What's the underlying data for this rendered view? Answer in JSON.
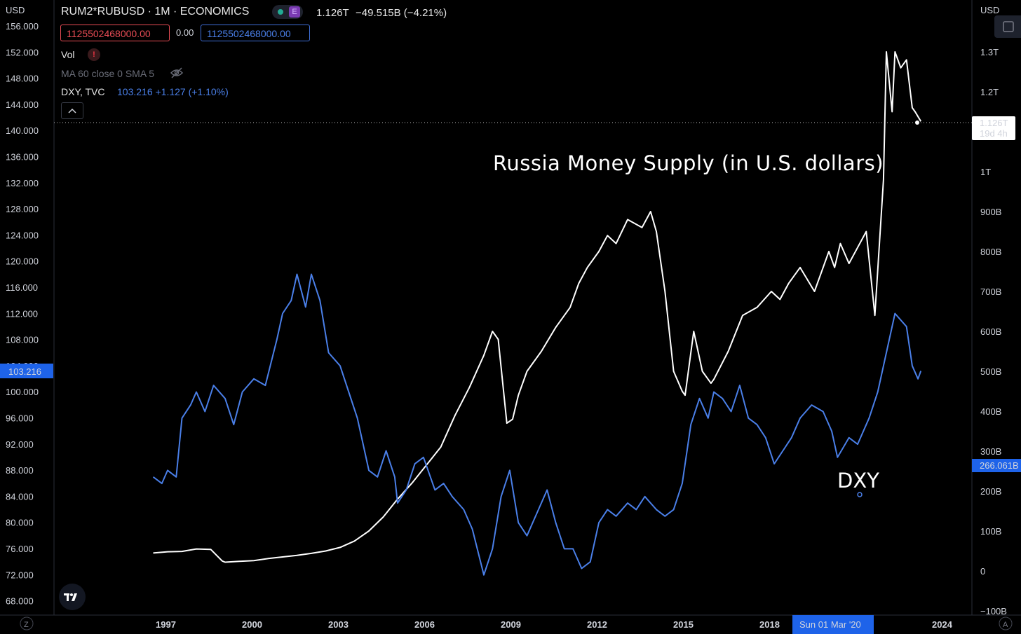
{
  "header": {
    "symbol": "RUM2*RUBUSD · 1M · ECONOMICS",
    "e_badge": "E",
    "last_value": "1.126T",
    "change": "−49.515B (−4.21%)",
    "sell_box": "1125502468000.00",
    "spread": "0.00",
    "buy_box": "1125502468000.00"
  },
  "indicators": {
    "vol_label": "Vol",
    "vol_warning": "!",
    "ma_label": "MA 60 close 0 SMA 5",
    "dxy_label": "DXY, TVC",
    "dxy_values": "103.216  +1.127 (+1.10%)"
  },
  "annotations": {
    "title": "Russia Money Supply (in U.S. dollars)",
    "dxy": "DXY"
  },
  "left_axis": {
    "currency": "USD",
    "ticks": [
      "156.000",
      "152.000",
      "148.000",
      "144.000",
      "140.000",
      "136.000",
      "132.000",
      "128.000",
      "124.000",
      "120.000",
      "116.000",
      "112.000",
      "108.000",
      "104.000",
      "100.000",
      "96.000",
      "92.000",
      "88.000",
      "84.000",
      "80.000",
      "76.000",
      "72.000",
      "68.000"
    ],
    "last_label": "103.216",
    "bottom_btn": "Z"
  },
  "right_axis": {
    "currency": "USD",
    "ticks": [
      "1.3T",
      "1.2T",
      "1T",
      "900B",
      "800B",
      "700B",
      "600B",
      "500B",
      "400B",
      "300B",
      "200B",
      "100B",
      "0",
      "−100B"
    ],
    "last_label": "1.126T",
    "last_sub": "19d 4h",
    "crosshair_label": "266.061B",
    "bottom_btn": "A"
  },
  "time_axis": {
    "ticks": [
      "1997",
      "2000",
      "2003",
      "2006",
      "2009",
      "2012",
      "2015",
      "2018",
      "2024"
    ],
    "crosshair_label": "Sun 01 Mar '20"
  },
  "colors": {
    "background": "#000000",
    "money_supply": "#ffffff",
    "dxy": "#4a7fe8",
    "sell": "#e84c55",
    "buy": "#3f6fd8",
    "label_blue": "#1e63e9"
  },
  "chart_data": {
    "type": "line",
    "x_unit": "year",
    "series": [
      {
        "name": "RUM2*RUBUSD",
        "axis": "right",
        "unit": "USD",
        "x": [
          1996.5,
          1997.0,
          1997.5,
          1998.0,
          1998.5,
          1998.9,
          1999.0,
          1999.5,
          2000.0,
          2000.5,
          2001.0,
          2001.5,
          2002.0,
          2002.5,
          2003.0,
          2003.5,
          2004.0,
          2004.5,
          2005.0,
          2005.5,
          2006.0,
          2006.5,
          2007.0,
          2007.5,
          2008.0,
          2008.3,
          2008.5,
          2008.8,
          2009.0,
          2009.2,
          2009.5,
          2010.0,
          2010.5,
          2011.0,
          2011.3,
          2011.6,
          2012.0,
          2012.3,
          2012.6,
          2013.0,
          2013.5,
          2013.8,
          2014.0,
          2014.3,
          2014.6,
          2014.9,
          2015.0,
          2015.3,
          2015.6,
          2015.9,
          2016.0,
          2016.5,
          2017.0,
          2017.5,
          2018.0,
          2018.3,
          2018.6,
          2019.0,
          2019.5,
          2020.0,
          2020.2,
          2020.4,
          2020.7,
          2021.0,
          2021.3,
          2021.6,
          2021.9,
          2022.0,
          2022.2,
          2022.3,
          2022.5,
          2022.7,
          2022.9,
          2023.0,
          2023.2
        ],
        "y": [
          45,
          48,
          49,
          55,
          54,
          25,
          22,
          24,
          26,
          31,
          35,
          39,
          44,
          50,
          59,
          75,
          100,
          135,
          180,
          220,
          265,
          310,
          390,
          460,
          540,
          600,
          580,
          370,
          380,
          440,
          500,
          550,
          610,
          660,
          720,
          760,
          800,
          840,
          820,
          880,
          860,
          900,
          850,
          700,
          500,
          450,
          440,
          600,
          500,
          470,
          480,
          550,
          640,
          660,
          700,
          680,
          720,
          760,
          700,
          800,
          760,
          820,
          770,
          810,
          850,
          640,
          980,
          1300,
          1150,
          1300,
          1260,
          1280,
          1160,
          1150,
          1126
        ]
      },
      {
        "name": "DXY",
        "axis": "left",
        "unit": "index",
        "x": [
          1996.5,
          1996.8,
          1997.0,
          1997.3,
          1997.5,
          1997.8,
          1998.0,
          1998.3,
          1998.6,
          1999.0,
          1999.3,
          1999.6,
          2000.0,
          2000.4,
          2000.8,
          2001.0,
          2001.3,
          2001.5,
          2001.8,
          2002.0,
          2002.3,
          2002.6,
          2003.0,
          2003.3,
          2003.6,
          2004.0,
          2004.3,
          2004.6,
          2004.9,
          2005.0,
          2005.3,
          2005.6,
          2005.9,
          2006.3,
          2006.6,
          2006.9,
          2007.3,
          2007.6,
          2008.0,
          2008.3,
          2008.6,
          2008.9,
          2009.2,
          2009.5,
          2009.9,
          2010.2,
          2010.5,
          2010.8,
          2011.1,
          2011.4,
          2011.7,
          2012.0,
          2012.3,
          2012.6,
          2013.0,
          2013.3,
          2013.6,
          2014.0,
          2014.3,
          2014.6,
          2014.9,
          2015.2,
          2015.5,
          2015.8,
          2016.0,
          2016.3,
          2016.6,
          2016.9,
          2017.2,
          2017.5,
          2017.8,
          2018.1,
          2018.4,
          2018.7,
          2019.0,
          2019.4,
          2019.8,
          2020.1,
          2020.3,
          2020.7,
          2021.0,
          2021.4,
          2021.7,
          2022.0,
          2022.3,
          2022.7,
          2022.9,
          2023.1,
          2023.2
        ],
        "y": [
          87,
          86,
          88,
          87,
          96,
          98,
          100,
          97,
          101,
          99,
          95,
          100,
          102,
          101,
          108,
          112,
          114,
          118,
          113,
          118,
          114,
          106,
          104,
          100,
          96,
          88,
          87,
          91,
          87,
          83,
          85,
          89,
          90,
          85,
          86,
          84,
          82,
          79,
          72,
          76,
          84,
          88,
          80,
          78,
          82,
          85,
          80,
          76,
          76,
          73,
          74,
          80,
          82,
          81,
          83,
          82,
          84,
          82,
          81,
          82,
          86,
          95,
          99,
          96,
          100,
          99,
          97,
          101,
          96,
          95,
          93,
          89,
          91,
          93,
          96,
          98,
          97,
          94,
          90,
          93,
          92,
          96,
          100,
          106,
          112,
          110,
          104,
          102,
          103.216
        ]
      }
    ],
    "right_axis_range": [
      -100000000000,
      1300000000000
    ],
    "left_axis_range": [
      68,
      156
    ],
    "x_range": [
      1996,
      2024
    ],
    "grid": false,
    "legend": "top-left"
  }
}
